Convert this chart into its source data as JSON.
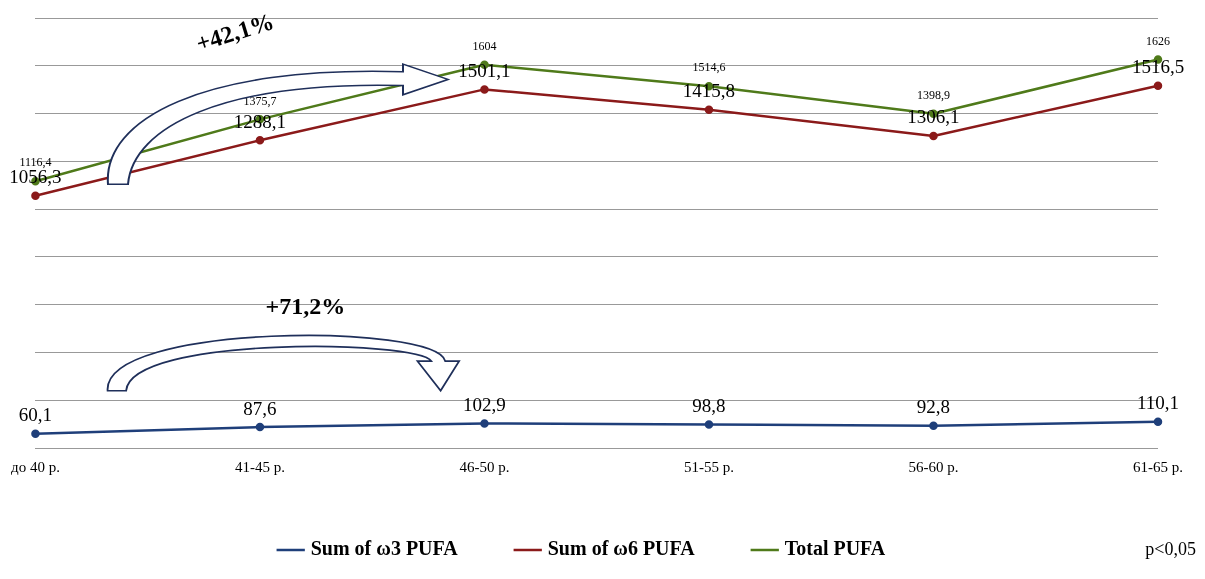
{
  "chart_data": {
    "type": "line",
    "categories": [
      "до 40 р.",
      "41-45 р.",
      "46-50 р.",
      "51-55 р.",
      "56-60 р.",
      "61-65 р."
    ],
    "series": [
      {
        "name": "Sum of ω3 PUFA",
        "color": "#1f3f7a",
        "values": [
          60.1,
          87.6,
          102.9,
          98.8,
          92.8,
          110.1
        ],
        "value_labels": [
          "60,1",
          "87,6",
          "102,9",
          "98,8",
          "92,8",
          "110,1"
        ]
      },
      {
        "name": "Sum of ω6 PUFA",
        "color": "#8b1a1a",
        "values": [
          1056.3,
          1288.1,
          1501.1,
          1415.8,
          1306.1,
          1516.5
        ],
        "value_labels": [
          "1056,3",
          "1288,1",
          "1501,1",
          "1415,8",
          "1306,1",
          "1516,5"
        ]
      },
      {
        "name": "Total PUFA",
        "color": "#4f7a1a",
        "values": [
          1116.4,
          1375.7,
          1604,
          1514.6,
          1398.9,
          1626
        ],
        "value_labels": [
          "1116,4",
          "1375,7",
          "1604",
          "1514,6",
          "1398,9",
          "1626"
        ]
      }
    ],
    "ylim": [
      0,
      1800
    ],
    "yticks": [
      {
        "value": 0,
        "label": null
      },
      {
        "value": 200,
        "label": null
      },
      {
        "value": 400,
        "label": null
      },
      {
        "value": 600,
        "label": null
      },
      {
        "value": 800,
        "label": null
      },
      {
        "value": 1000,
        "label": null
      },
      {
        "value": 1200,
        "label": null
      },
      {
        "value": 1400,
        "label": null
      },
      {
        "value": 1600,
        "label": null
      },
      {
        "value": 1800,
        "label": null
      }
    ],
    "tick_labels": "x",
    "grid": "y",
    "legend": "bottom",
    "marker": "circle",
    "line_style": "solid",
    "annotations": [
      "+42,1%",
      "+71,2%",
      "p<0,05"
    ]
  }
}
